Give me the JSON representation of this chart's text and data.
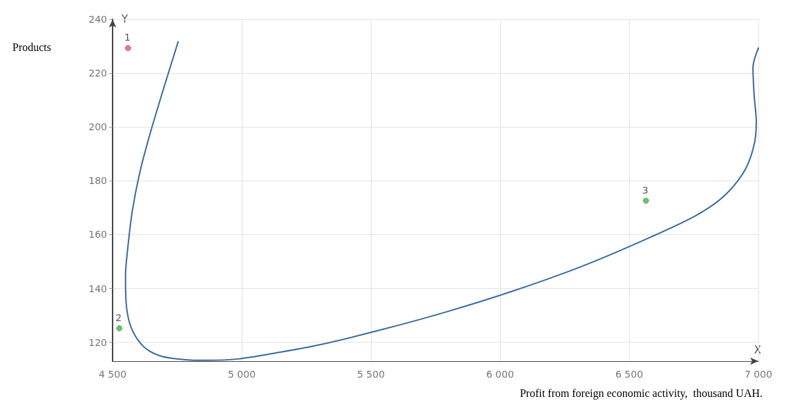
{
  "chart_data": {
    "type": "line",
    "xlabel": "Profit from foreign economic activity,  thousand UAH.",
    "ylabel": "Products",
    "annotations": [
      "Y",
      "X"
    ],
    "xlim": [
      4500,
      7000
    ],
    "xticks": [
      {
        "value": 4500,
        "label": "4 500"
      },
      {
        "value": 5000,
        "label": "5 000"
      },
      {
        "value": 5500,
        "label": "5 500"
      },
      {
        "value": 6000,
        "label": "6 000"
      },
      {
        "value": 6500,
        "label": "6 500"
      },
      {
        "value": 7000,
        "label": "7 000"
      }
    ],
    "ylim": [
      113,
      240
    ],
    "yticks": [
      120,
      140,
      160,
      180,
      200,
      220,
      240
    ],
    "grid": true,
    "series": [
      {
        "color": "#3a6a9a",
        "marker": "none",
        "line_style": "solid",
        "x": [
          4754,
          4696,
          4644,
          4605,
          4576,
          4558,
          4550,
          4552,
          4571,
          4618,
          4683,
          4775,
          4866,
          4984,
          5141,
          5298,
          5534,
          5796,
          6058,
          6319,
          6581,
          6764,
          6869,
          6948,
          6984,
          6992,
          6984,
          6979,
          7000
        ],
        "values": [
          231.7,
          213.8,
          197.1,
          182.9,
          168.6,
          154.3,
          144.8,
          135.2,
          125.7,
          118.6,
          115,
          113.6,
          113.3,
          113.8,
          116.2,
          119,
          124.5,
          131.4,
          139.3,
          148.3,
          159,
          167.4,
          174.5,
          184,
          193.6,
          201.9,
          211.4,
          222.1,
          229.3
        ]
      },
      {
        "type": "scatter",
        "name": "1",
        "color": "#e05a5a",
        "marker": "circle",
        "x": [
          4560
        ],
        "values": [
          229.3
        ]
      },
      {
        "type": "scatter",
        "name": "2",
        "color": "#4caf50",
        "marker": "circle",
        "x": [
          4526
        ],
        "values": [
          125.2
        ]
      },
      {
        "type": "scatter",
        "name": "3",
        "color": "#4caf50",
        "marker": "circle",
        "x": [
          6565
        ],
        "values": [
          172.6
        ]
      }
    ]
  }
}
